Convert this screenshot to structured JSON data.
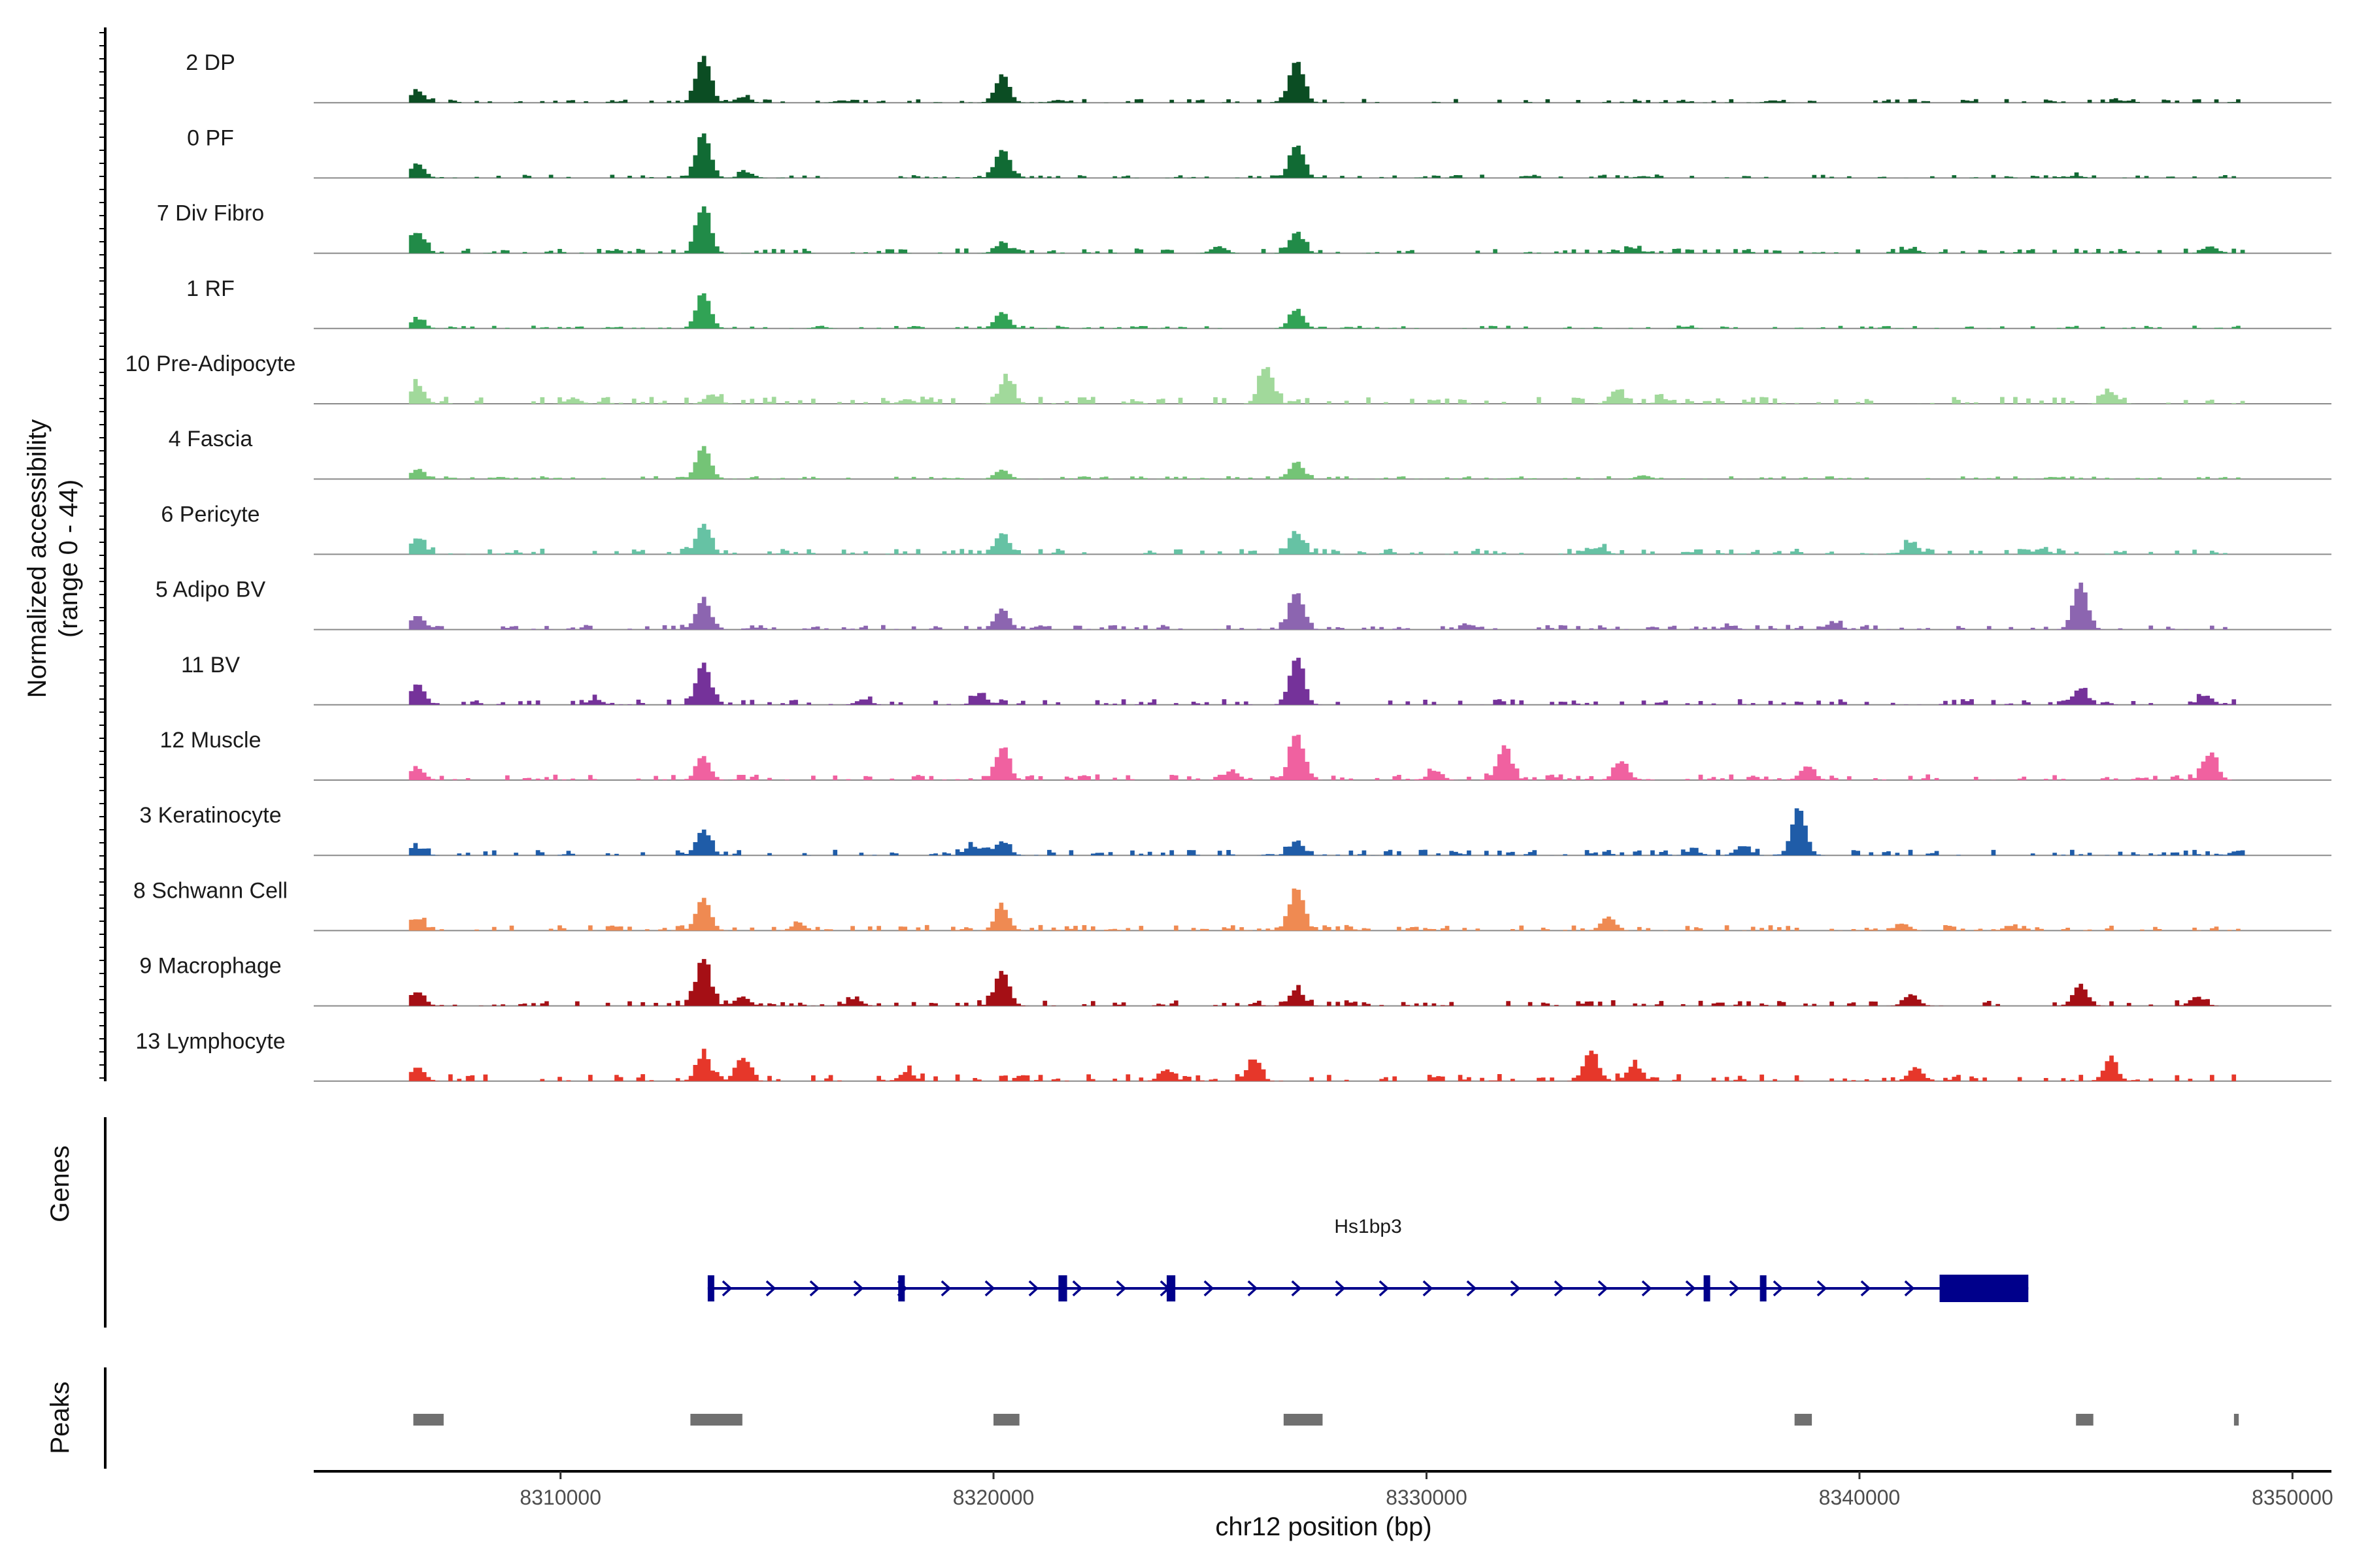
{
  "chart_data": {
    "type": "area",
    "title": "",
    "xlabel": "chr12 position (bp)",
    "ylabel": "Normalized accessibility",
    "ylabel_range": "(range 0 - 44)",
    "xlim": [
      8304300,
      8350900
    ],
    "ylim": [
      0,
      44
    ],
    "x_ticks": [
      8310000,
      8320000,
      8330000,
      8340000,
      8350000
    ],
    "x_tick_labels": [
      "8310000",
      "8320000",
      "8330000",
      "8340000",
      "8350000"
    ],
    "tracks": [
      {
        "name": "2 DP",
        "color": "#0b4d23",
        "peaks": [
          [
            8306700,
            0.25
          ],
          [
            8313300,
            1.0
          ],
          [
            8320200,
            0.55
          ],
          [
            8327000,
            0.9
          ],
          [
            8314200,
            0.12
          ],
          [
            8316500,
            0.05
          ],
          [
            8321500,
            0.06
          ],
          [
            8338000,
            0.05
          ],
          [
            8346000,
            0.05
          ]
        ],
        "noise": 0.08
      },
      {
        "name": "0 PF",
        "color": "#116b34",
        "peaks": [
          [
            8306700,
            0.3
          ],
          [
            8313300,
            0.95
          ],
          [
            8320200,
            0.6
          ],
          [
            8327000,
            0.7
          ],
          [
            8314300,
            0.12
          ],
          [
            8335000,
            0.04
          ],
          [
            8345000,
            0.05
          ]
        ],
        "noise": 0.07
      },
      {
        "name": "7 Div Fibro",
        "color": "#218b48",
        "peaks": [
          [
            8306700,
            0.45
          ],
          [
            8313300,
            1.0
          ],
          [
            8320200,
            0.2
          ],
          [
            8325200,
            0.15
          ],
          [
            8327000,
            0.45
          ],
          [
            8334800,
            0.1
          ],
          [
            8341200,
            0.1
          ],
          [
            8348100,
            0.15
          ]
        ],
        "noise": 0.1
      },
      {
        "name": "1 RF",
        "color": "#31a355",
        "peaks": [
          [
            8306700,
            0.2
          ],
          [
            8313300,
            0.75
          ],
          [
            8320200,
            0.35
          ],
          [
            8327000,
            0.4
          ],
          [
            8316000,
            0.04
          ],
          [
            8336000,
            0.04
          ]
        ],
        "noise": 0.06
      },
      {
        "name": "10 Pre-Adipocyte",
        "color": "#a1d99b",
        "peaks": [
          [
            8306700,
            0.4
          ],
          [
            8313500,
            0.2
          ],
          [
            8320300,
            0.55
          ],
          [
            8326300,
            0.8
          ],
          [
            8334400,
            0.3
          ],
          [
            8345800,
            0.25
          ],
          [
            8310300,
            0.12
          ],
          [
            8318000,
            0.1
          ],
          [
            8335500,
            0.1
          ]
        ],
        "noise": 0.15
      },
      {
        "name": "4 Fascia",
        "color": "#74c476",
        "peaks": [
          [
            8306700,
            0.2
          ],
          [
            8313300,
            0.7
          ],
          [
            8320200,
            0.2
          ],
          [
            8327000,
            0.35
          ],
          [
            8335000,
            0.08
          ]
        ],
        "noise": 0.06
      },
      {
        "name": "6 Pericyte",
        "color": "#66c2a4",
        "peaks": [
          [
            8306700,
            0.35
          ],
          [
            8313300,
            0.65
          ],
          [
            8320200,
            0.45
          ],
          [
            8327000,
            0.45
          ],
          [
            8334000,
            0.15
          ],
          [
            8341200,
            0.25
          ],
          [
            8344200,
            0.12
          ]
        ],
        "noise": 0.12
      },
      {
        "name": "5 Adipo BV",
        "color": "#8c65b0",
        "peaks": [
          [
            8306700,
            0.3
          ],
          [
            8313300,
            0.65
          ],
          [
            8320200,
            0.45
          ],
          [
            8327000,
            0.8
          ],
          [
            8345100,
            1.0
          ],
          [
            8331000,
            0.1
          ],
          [
            8339400,
            0.15
          ],
          [
            8337000,
            0.08
          ]
        ],
        "noise": 0.1
      },
      {
        "name": "11 BV",
        "color": "#75329a",
        "peaks": [
          [
            8306700,
            0.45
          ],
          [
            8313300,
            0.9
          ],
          [
            8319700,
            0.2
          ],
          [
            8327000,
            1.0
          ],
          [
            8345100,
            0.35
          ],
          [
            8348000,
            0.2
          ],
          [
            8317000,
            0.12
          ],
          [
            8310800,
            0.12
          ]
        ],
        "noise": 0.12
      },
      {
        "name": "12 Muscle",
        "color": "#f061a0",
        "peaks": [
          [
            8306700,
            0.25
          ],
          [
            8313300,
            0.45
          ],
          [
            8320200,
            0.65
          ],
          [
            8327000,
            1.0
          ],
          [
            8331800,
            0.7
          ],
          [
            8334500,
            0.4
          ],
          [
            8338800,
            0.3
          ],
          [
            8348100,
            0.55
          ],
          [
            8325500,
            0.2
          ],
          [
            8330200,
            0.2
          ]
        ],
        "noise": 0.12
      },
      {
        "name": "3 Keratinocyte",
        "color": "#1f5ca8",
        "peaks": [
          [
            8306700,
            0.15
          ],
          [
            8313300,
            0.55
          ],
          [
            8319500,
            0.2
          ],
          [
            8320200,
            0.3
          ],
          [
            8327000,
            0.3
          ],
          [
            8338600,
            1.0
          ],
          [
            8337300,
            0.2
          ],
          [
            8336200,
            0.08
          ]
        ],
        "noise": 0.12
      },
      {
        "name": "8 Schwann Cell",
        "color": "#ef8a52",
        "peaks": [
          [
            8306700,
            0.25
          ],
          [
            8313300,
            0.7
          ],
          [
            8320200,
            0.5
          ],
          [
            8327000,
            0.9
          ],
          [
            8315500,
            0.15
          ],
          [
            8334200,
            0.3
          ],
          [
            8341000,
            0.15
          ],
          [
            8343500,
            0.1
          ]
        ],
        "noise": 0.12
      },
      {
        "name": "9 Macrophage",
        "color": "#a50f15",
        "peaks": [
          [
            8306700,
            0.3
          ],
          [
            8313300,
            1.0
          ],
          [
            8320200,
            0.75
          ],
          [
            8327000,
            0.35
          ],
          [
            8341200,
            0.25
          ],
          [
            8345100,
            0.45
          ],
          [
            8347800,
            0.2
          ],
          [
            8314200,
            0.2
          ],
          [
            8316800,
            0.15
          ]
        ],
        "noise": 0.12
      },
      {
        "name": "13 Lymphocyte",
        "color": "#e6372a",
        "peaks": [
          [
            8306700,
            0.3
          ],
          [
            8313300,
            0.55
          ],
          [
            8314200,
            0.5
          ],
          [
            8326000,
            0.4
          ],
          [
            8333800,
            0.65
          ],
          [
            8334800,
            0.35
          ],
          [
            8341300,
            0.3
          ],
          [
            8345800,
            0.4
          ],
          [
            8324000,
            0.25
          ],
          [
            8318000,
            0.2
          ]
        ],
        "noise": 0.15
      }
    ],
    "genes": [
      {
        "name": "Hs1bp3",
        "start": 8313400,
        "end": 8343900,
        "strand": "+",
        "color": "#00008b",
        "exons": [
          [
            8313400,
            8313550
          ],
          [
            8317800,
            8317950
          ],
          [
            8321500,
            8321700
          ],
          [
            8324000,
            8324200
          ],
          [
            8336400,
            8336550
          ],
          [
            8337700,
            8337850
          ],
          [
            8341850,
            8343900
          ]
        ]
      }
    ],
    "peaks": [
      [
        8306600,
        8307300
      ],
      [
        8313000,
        8314200
      ],
      [
        8320000,
        8320600
      ],
      [
        8326700,
        8327600
      ],
      [
        8338500,
        8338900
      ],
      [
        8345000,
        8345400
      ],
      [
        8348650,
        8348760
      ]
    ],
    "genes_label": "Genes",
    "peaks_label": "Peaks",
    "peaks_color": "#707070"
  }
}
